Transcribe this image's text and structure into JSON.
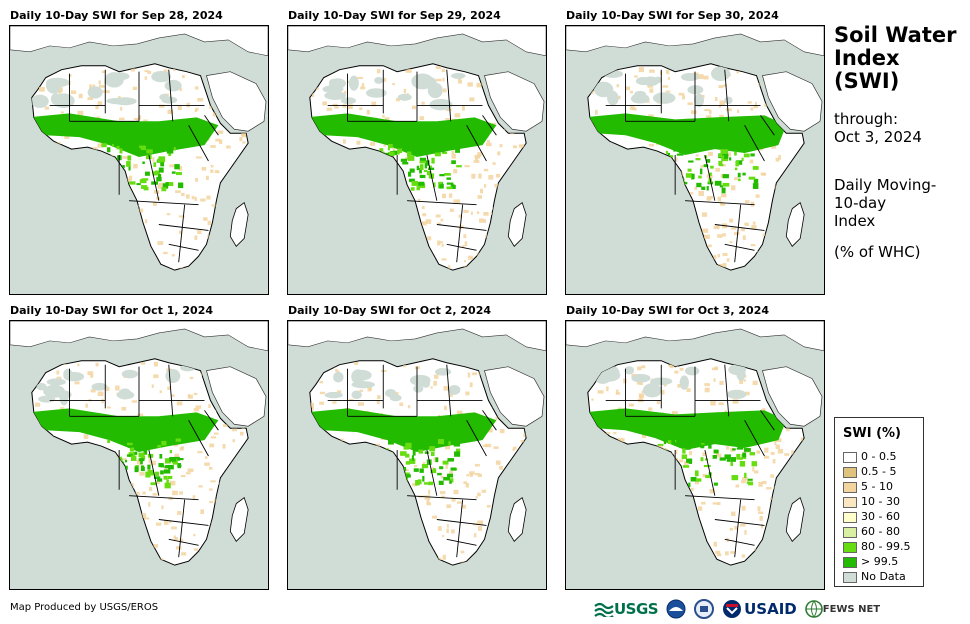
{
  "panels": [
    {
      "title": "Daily 10-Day SWI for Sep 28, 2024",
      "green_band": "wide-west"
    },
    {
      "title": "Daily 10-Day SWI for Sep 29, 2024",
      "green_band": "wide-west"
    },
    {
      "title": "Daily 10-Day SWI for Sep 30, 2024",
      "green_band": "wide-east"
    },
    {
      "title": "Daily 10-Day SWI for Oct 1, 2024",
      "green_band": "wide-west"
    },
    {
      "title": "Daily 10-Day SWI for Oct 2, 2024",
      "green_band": "wide-west"
    },
    {
      "title": "Daily 10-Day SWI for Oct 3, 2024",
      "green_band": "wide-east"
    }
  ],
  "side": {
    "title_line1": "Soil Water",
    "title_line2": "Index",
    "title_line3": "(SWI)",
    "through_label": "through:",
    "through_date": "Oct 3, 2024",
    "desc_line1": "Daily Moving-",
    "desc_line2": "10-day",
    "desc_line3": "Index",
    "unit": "(% of WHC)"
  },
  "legend": {
    "title": "SWI (%)",
    "items": [
      {
        "label": "0 - 0.5",
        "color": "#ffffff"
      },
      {
        "label": "0.5 - 5",
        "color": "#dfc27d"
      },
      {
        "label": "5 - 10",
        "color": "#f2d49e"
      },
      {
        "label": "10 - 30",
        "color": "#fbe6c2"
      },
      {
        "label": "30 - 60",
        "color": "#ffffcc"
      },
      {
        "label": "60 - 80",
        "color": "#d9f0a3"
      },
      {
        "label": "80 - 99.5",
        "color": "#66dd11"
      },
      {
        "label": "> 99.5",
        "color": "#22bb00"
      },
      {
        "label": "No Data",
        "color": "#d0dcd6"
      }
    ]
  },
  "footer": "Map Produced by USGS/EROS",
  "logos": {
    "usgs": "USGS",
    "usaid": "USAID",
    "fews": "FEWS NET"
  },
  "colors": {
    "ocean": "#d0dcd6",
    "land": "#ffffff",
    "tan": "#f2d49e",
    "green_light": "#66dd11",
    "green_dark": "#22bb00"
  }
}
